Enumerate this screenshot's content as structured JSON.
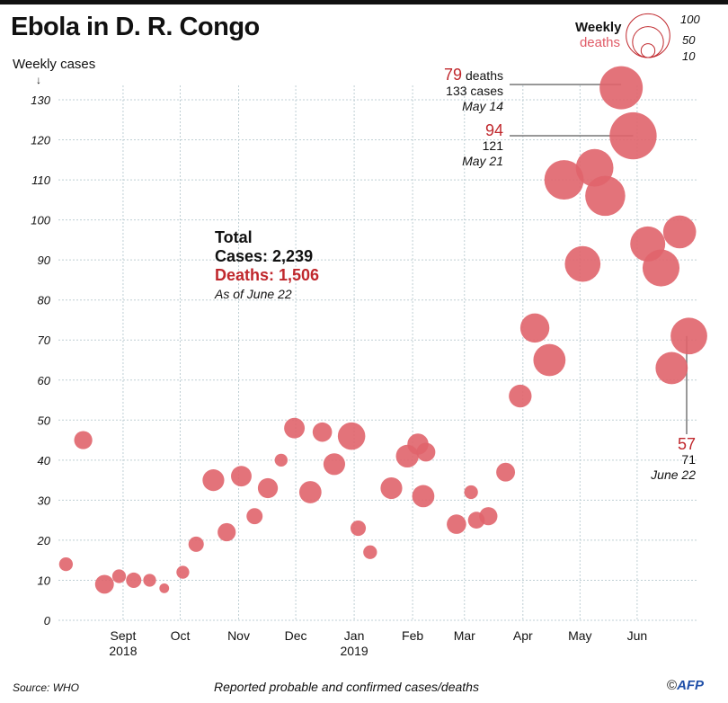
{
  "chart_data": {
    "type": "scatter",
    "title": "Ebola in D. R. Congo",
    "ylabel": "Weekly cases",
    "xlabel": "",
    "ylim": [
      0,
      130
    ],
    "yticks": [
      0,
      10,
      20,
      30,
      40,
      50,
      60,
      70,
      80,
      90,
      100,
      110,
      120,
      130
    ],
    "grid": true,
    "x_unit": "week index from early Aug 2018",
    "xticks": [
      {
        "label": "Sept",
        "sub": "2018",
        "x": 4.3
      },
      {
        "label": "Oct",
        "sub": "",
        "x": 8.6
      },
      {
        "label": "Nov",
        "sub": "",
        "x": 13.0
      },
      {
        "label": "Dec",
        "sub": "",
        "x": 17.3
      },
      {
        "label": "Jan",
        "sub": "2019",
        "x": 21.7
      },
      {
        "label": "Feb",
        "sub": "",
        "x": 26.1
      },
      {
        "label": "Mar",
        "sub": "",
        "x": 30.0
      },
      {
        "label": "Apr",
        "sub": "",
        "x": 34.4
      },
      {
        "label": "May",
        "sub": "",
        "x": 38.7
      },
      {
        "label": "Jun",
        "sub": "",
        "x": 43.0
      }
    ],
    "xlim": [
      -0.5,
      47
    ],
    "size_legend": {
      "title_line1": "Weekly",
      "title_line2": "deaths",
      "values": [
        100,
        50,
        10
      ]
    },
    "color": "#e0646c",
    "points": [
      {
        "x": 0,
        "cases": 14,
        "deaths": 8
      },
      {
        "x": 1.3,
        "cases": 45,
        "deaths": 14
      },
      {
        "x": 2.9,
        "cases": 9,
        "deaths": 15
      },
      {
        "x": 4.0,
        "cases": 11,
        "deaths": 8
      },
      {
        "x": 5.1,
        "cases": 10,
        "deaths": 10
      },
      {
        "x": 6.3,
        "cases": 10,
        "deaths": 7
      },
      {
        "x": 7.4,
        "cases": 8,
        "deaths": 4
      },
      {
        "x": 8.8,
        "cases": 12,
        "deaths": 7
      },
      {
        "x": 9.8,
        "cases": 19,
        "deaths": 10
      },
      {
        "x": 11.1,
        "cases": 35,
        "deaths": 20
      },
      {
        "x": 12.1,
        "cases": 22,
        "deaths": 14
      },
      {
        "x": 13.2,
        "cases": 36,
        "deaths": 18
      },
      {
        "x": 14.2,
        "cases": 26,
        "deaths": 11
      },
      {
        "x": 15.2,
        "cases": 33,
        "deaths": 17
      },
      {
        "x": 16.2,
        "cases": 40,
        "deaths": 7
      },
      {
        "x": 17.2,
        "cases": 48,
        "deaths": 18
      },
      {
        "x": 18.4,
        "cases": 32,
        "deaths": 21
      },
      {
        "x": 19.3,
        "cases": 47,
        "deaths": 16
      },
      {
        "x": 20.2,
        "cases": 39,
        "deaths": 20
      },
      {
        "x": 21.5,
        "cases": 46,
        "deaths": 32
      },
      {
        "x": 22.0,
        "cases": 23,
        "deaths": 10
      },
      {
        "x": 22.9,
        "cases": 17,
        "deaths": 8
      },
      {
        "x": 24.5,
        "cases": 33,
        "deaths": 20
      },
      {
        "x": 25.7,
        "cases": 41,
        "deaths": 22
      },
      {
        "x": 26.5,
        "cases": 44,
        "deaths": 19
      },
      {
        "x": 27.1,
        "cases": 42,
        "deaths": 15
      },
      {
        "x": 26.9,
        "cases": 31,
        "deaths": 21
      },
      {
        "x": 29.4,
        "cases": 24,
        "deaths": 16
      },
      {
        "x": 30.5,
        "cases": 32,
        "deaths": 8
      },
      {
        "x": 30.9,
        "cases": 25,
        "deaths": 12
      },
      {
        "x": 31.8,
        "cases": 26,
        "deaths": 14
      },
      {
        "x": 33.1,
        "cases": 37,
        "deaths": 15
      },
      {
        "x": 34.2,
        "cases": 56,
        "deaths": 22
      },
      {
        "x": 35.3,
        "cases": 73,
        "deaths": 36
      },
      {
        "x": 36.4,
        "cases": 65,
        "deaths": 44
      },
      {
        "x": 37.5,
        "cases": 110,
        "deaths": 66
      },
      {
        "x": 38.9,
        "cases": 89,
        "deaths": 54
      },
      {
        "x": 39.8,
        "cases": 113,
        "deaths": 60
      },
      {
        "x": 40.6,
        "cases": 106,
        "deaths": 68
      },
      {
        "x": 41.8,
        "cases": 133,
        "deaths": 79,
        "label": "May 14"
      },
      {
        "x": 42.7,
        "cases": 121,
        "deaths": 94,
        "label": "May 21"
      },
      {
        "x": 43.8,
        "cases": 94,
        "deaths": 52
      },
      {
        "x": 44.8,
        "cases": 88,
        "deaths": 58
      },
      {
        "x": 45.6,
        "cases": 63,
        "deaths": 44
      },
      {
        "x": 46.2,
        "cases": 97,
        "deaths": 46
      },
      {
        "x": 46.9,
        "cases": 71,
        "deaths": 57,
        "label": "June 22"
      }
    ]
  },
  "header": {
    "title": "Ebola in D. R. Congo",
    "y_axis_label": "Weekly cases",
    "y_arrow": "↓"
  },
  "legend": {
    "line1": "Weekly",
    "line2": "deaths",
    "values": [
      "100",
      "50",
      "10"
    ]
  },
  "totals": {
    "heading": "Total",
    "cases": "Cases: 2,239",
    "deaths": "Deaths: 1,506",
    "as_of": "As of June 22"
  },
  "annotations": {
    "may14": {
      "deaths": "79",
      "deaths_suffix": " deaths",
      "cases": "133 cases",
      "date": "May 14"
    },
    "may21": {
      "deaths": "94",
      "cases": "121",
      "date": "May 21"
    },
    "june22": {
      "deaths": "57",
      "cases": "71",
      "date": "June 22"
    }
  },
  "footer": {
    "source": "Source: WHO",
    "note": "Reported probable and confirmed cases/deaths",
    "copyright": "©",
    "brand": "AFP"
  }
}
